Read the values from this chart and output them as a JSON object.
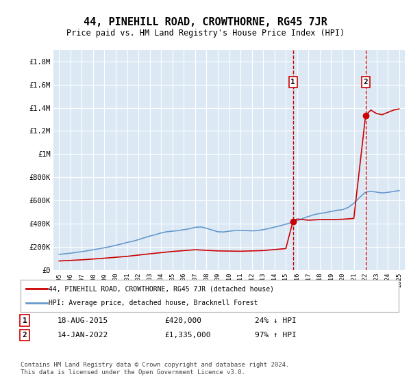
{
  "title": "44, PINEHILL ROAD, CROWTHORNE, RG45 7JR",
  "subtitle": "Price paid vs. HM Land Registry's House Price Index (HPI)",
  "background_color": "#ffffff",
  "plot_bg_color": "#dce9f5",
  "ylim": [
    0,
    1900000
  ],
  "yticks": [
    0,
    200000,
    400000,
    600000,
    800000,
    1000000,
    1200000,
    1400000,
    1600000,
    1800000
  ],
  "ytick_labels": [
    "£0",
    "£200K",
    "£400K",
    "£600K",
    "£800K",
    "£1M",
    "£1.2M",
    "£1.4M",
    "£1.6M",
    "£1.8M"
  ],
  "xlim_start": 1994.5,
  "xlim_end": 2025.5,
  "xticks": [
    1995,
    1996,
    1997,
    1998,
    1999,
    2000,
    2001,
    2002,
    2003,
    2004,
    2005,
    2006,
    2007,
    2008,
    2009,
    2010,
    2011,
    2012,
    2013,
    2014,
    2015,
    2016,
    2017,
    2018,
    2019,
    2020,
    2021,
    2022,
    2023,
    2024,
    2025
  ],
  "hpi_years": [
    1995,
    1995.5,
    1996,
    1996.5,
    1997,
    1997.5,
    1998,
    1998.5,
    1999,
    1999.5,
    2000,
    2000.5,
    2001,
    2001.5,
    2002,
    2002.5,
    2003,
    2003.5,
    2004,
    2004.5,
    2005,
    2005.5,
    2006,
    2006.5,
    2007,
    2007.5,
    2008,
    2008.5,
    2009,
    2009.5,
    2010,
    2010.5,
    2011,
    2011.5,
    2012,
    2012.5,
    2013,
    2013.5,
    2014,
    2014.5,
    2015,
    2015.5,
    2016,
    2016.5,
    2017,
    2017.5,
    2018,
    2018.5,
    2019,
    2019.5,
    2020,
    2020.5,
    2021,
    2021.5,
    2022,
    2022.5,
    2023,
    2023.5,
    2024,
    2024.5,
    2025
  ],
  "hpi_values": [
    135000,
    140000,
    145000,
    152000,
    158000,
    166000,
    175000,
    183000,
    192000,
    202000,
    213000,
    225000,
    238000,
    248000,
    262000,
    278000,
    293000,
    305000,
    320000,
    330000,
    335000,
    340000,
    348000,
    356000,
    368000,
    372000,
    360000,
    345000,
    330000,
    328000,
    335000,
    340000,
    342000,
    340000,
    338000,
    340000,
    348000,
    358000,
    370000,
    382000,
    395000,
    410000,
    425000,
    445000,
    462000,
    478000,
    488000,
    495000,
    505000,
    515000,
    520000,
    540000,
    575000,
    625000,
    670000,
    680000,
    672000,
    665000,
    670000,
    678000,
    685000
  ],
  "sale1_x": 2015.63,
  "sale1_y": 420000,
  "sale2_x": 2022.04,
  "sale2_y": 1335000,
  "sale1_label": "1",
  "sale2_label": "2",
  "vline1_x": 2015.63,
  "vline2_x": 2022.04,
  "red_line_color": "#cc0000",
  "blue_line_color": "#6699cc",
  "marker_color_sale": "#cc0000",
  "vline_color": "#cc0000",
  "highlight_bg": "#dce9f5",
  "legend_label_red": "44, PINEHILL ROAD, CROWTHORNE, RG45 7JR (detached house)",
  "legend_label_blue": "HPI: Average price, detached house, Bracknell Forest",
  "annotation1_num": "1",
  "annotation1_date": "18-AUG-2015",
  "annotation1_price": "£420,000",
  "annotation1_hpi": "24% ↓ HPI",
  "annotation2_num": "2",
  "annotation2_date": "14-JAN-2022",
  "annotation2_price": "£1,335,000",
  "annotation2_hpi": "97% ↑ HPI",
  "footer": "Contains HM Land Registry data © Crown copyright and database right 2024.\nThis data is licensed under the Open Government Licence v3.0."
}
